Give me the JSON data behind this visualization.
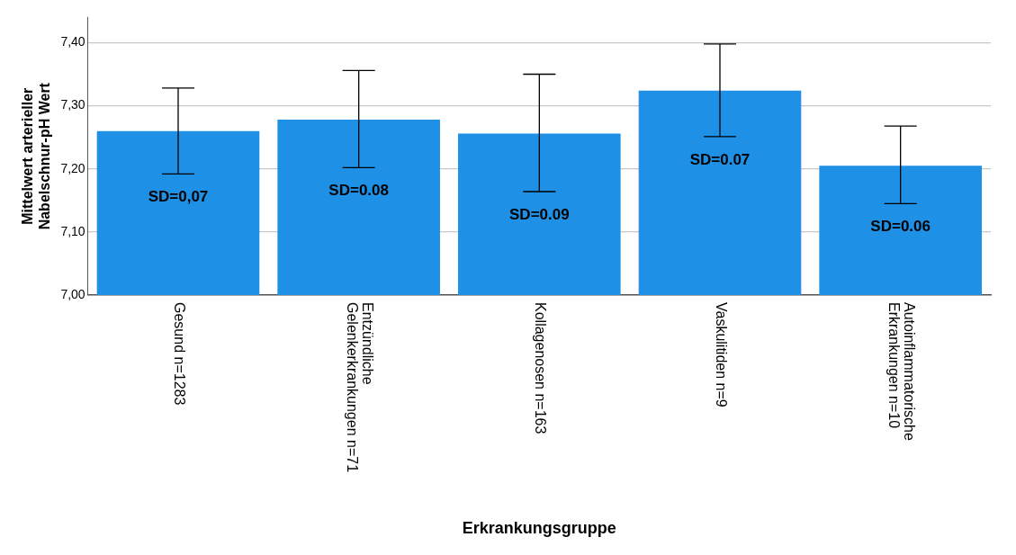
{
  "chart_data": {
    "type": "bar",
    "xlabel": "Erkrankungsgruppe",
    "ylabel": "Mittelwert arterieller\nNabelschnur-pH Wert",
    "categories": [
      "Gesund n=1283",
      "Entzündliche\nGelenkerkrankungen n=71",
      "Kollagenosen n=163",
      "Vaskulitiden n=9",
      "Autoinflammatorische\nErkrankungen n=10"
    ],
    "values": [
      7.26,
      7.278,
      7.256,
      7.324,
      7.205
    ],
    "errors": [
      [
        7.192,
        7.328
      ],
      [
        7.202,
        7.356
      ],
      [
        7.164,
        7.35
      ],
      [
        7.251,
        7.398
      ],
      [
        7.145,
        7.268
      ]
    ],
    "color": "#1e90e6",
    "ylim": [
      7.0,
      7.44
    ],
    "yticks": [
      {
        "value": 7.0,
        "label": "7,00"
      },
      {
        "value": 7.1,
        "label": "7,10"
      },
      {
        "value": 7.2,
        "label": "7,20"
      },
      {
        "value": 7.3,
        "label": "7,30"
      },
      {
        "value": 7.4,
        "label": "7,40"
      }
    ],
    "grid": "y",
    "annotations": [
      "SD=0,07",
      "SD=0.08",
      "SD=0.09",
      "SD=0.07",
      "SD=0.06"
    ]
  }
}
